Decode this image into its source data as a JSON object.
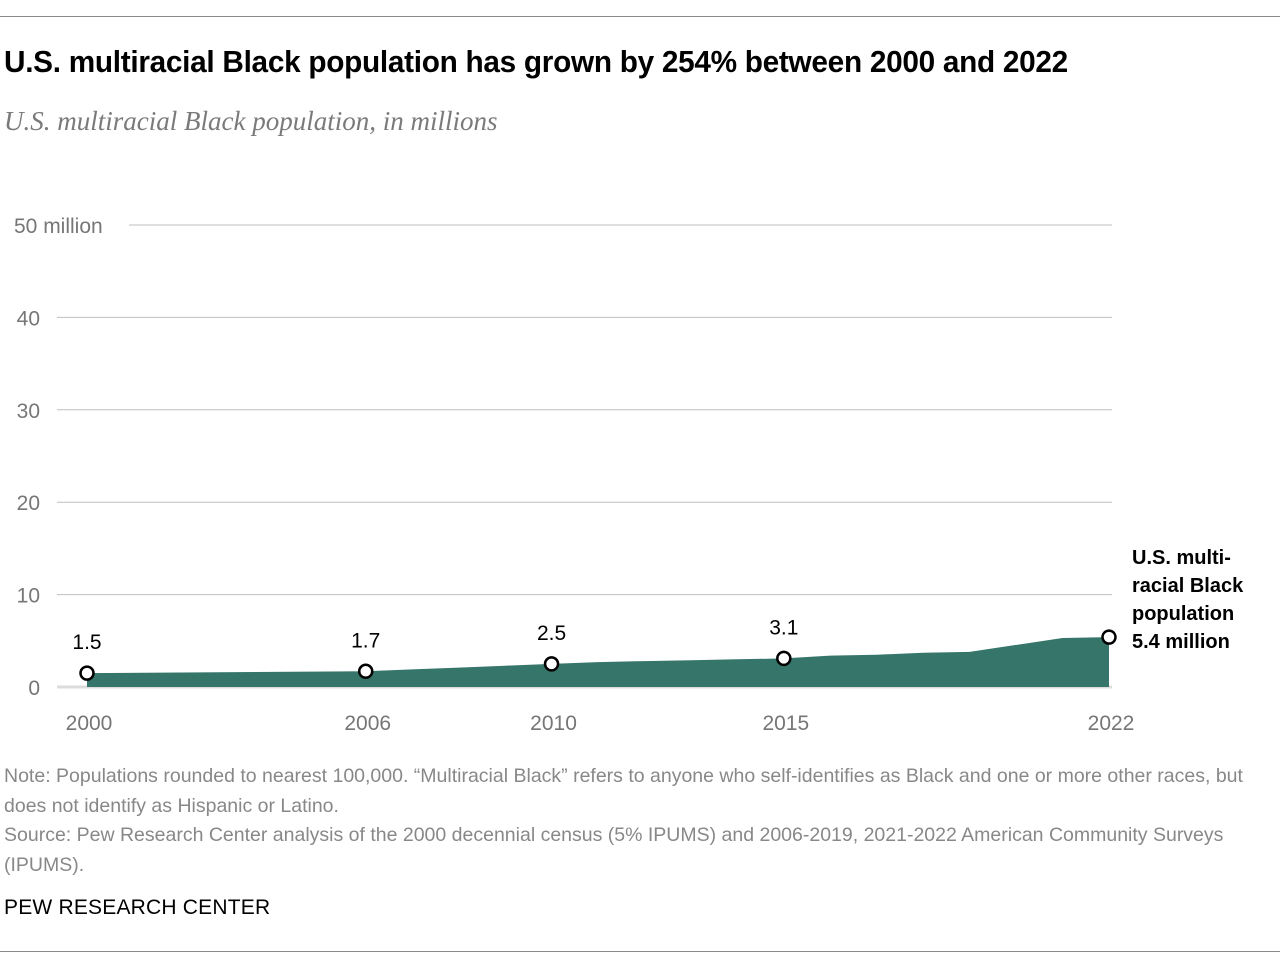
{
  "header": {
    "title": "U.S. multiracial Black population has grown by 254% between 2000 and 2022",
    "subtitle": "U.S. multiracial Black population, in millions"
  },
  "colors": {
    "area_fill": "#35756a",
    "gridline": "#bfbfbf",
    "baseline": "#dcdcdc",
    "tick_text": "#767676",
    "note_text": "#888888"
  },
  "chart_data": {
    "type": "area",
    "title": "U.S. multiracial Black population has grown by 254% between 2000 and 2022",
    "subtitle": "U.S. multiracial Black population, in millions",
    "xlabel": "",
    "ylabel": "",
    "ylim": [
      0,
      50
    ],
    "yticks": [
      0,
      10,
      20,
      30,
      40,
      50
    ],
    "ytick_labels": [
      "0",
      "10",
      "20",
      "30",
      "40",
      "50 million"
    ],
    "xlim": [
      2000,
      2022
    ],
    "xticks": [
      2000,
      2006,
      2010,
      2015,
      2022
    ],
    "xtick_labels": [
      "2000",
      "2006",
      "2010",
      "2015",
      "2022"
    ],
    "grid": true,
    "series": [
      {
        "name": "U.S. multiracial Black population",
        "x": [
          2000,
          2006,
          2007,
          2008,
          2009,
          2010,
          2011,
          2012,
          2013,
          2014,
          2015,
          2016,
          2017,
          2018,
          2019,
          2021,
          2022
        ],
        "values": [
          1.5,
          1.7,
          1.9,
          2.1,
          2.3,
          2.5,
          2.7,
          2.8,
          2.9,
          3.0,
          3.1,
          3.4,
          3.5,
          3.7,
          3.8,
          5.3,
          5.4
        ]
      }
    ],
    "labeled_points": [
      {
        "x": 2000,
        "value": 1.5,
        "label": "1.5"
      },
      {
        "x": 2006,
        "value": 1.7,
        "label": "1.7"
      },
      {
        "x": 2010,
        "value": 2.5,
        "label": "2.5"
      },
      {
        "x": 2015,
        "value": 3.1,
        "label": "3.1"
      },
      {
        "x": 2022,
        "value": 5.4,
        "label": ""
      }
    ],
    "annotation": {
      "lines": [
        "U.S. multi-",
        "racial Black",
        "population",
        "5.4 million"
      ]
    }
  },
  "footer": {
    "note": "Note: Populations rounded to nearest 100,000. “Multiracial Black” refers to anyone who self-identifies as Black and one or more other races, but does not identify as Hispanic or Latino.",
    "source": "Source: Pew Research Center analysis of the 2000 decennial census (5% IPUMS) and 2006-2019, 2021-2022 American Community Surveys (IPUMS).",
    "brand": "PEW RESEARCH CENTER"
  }
}
